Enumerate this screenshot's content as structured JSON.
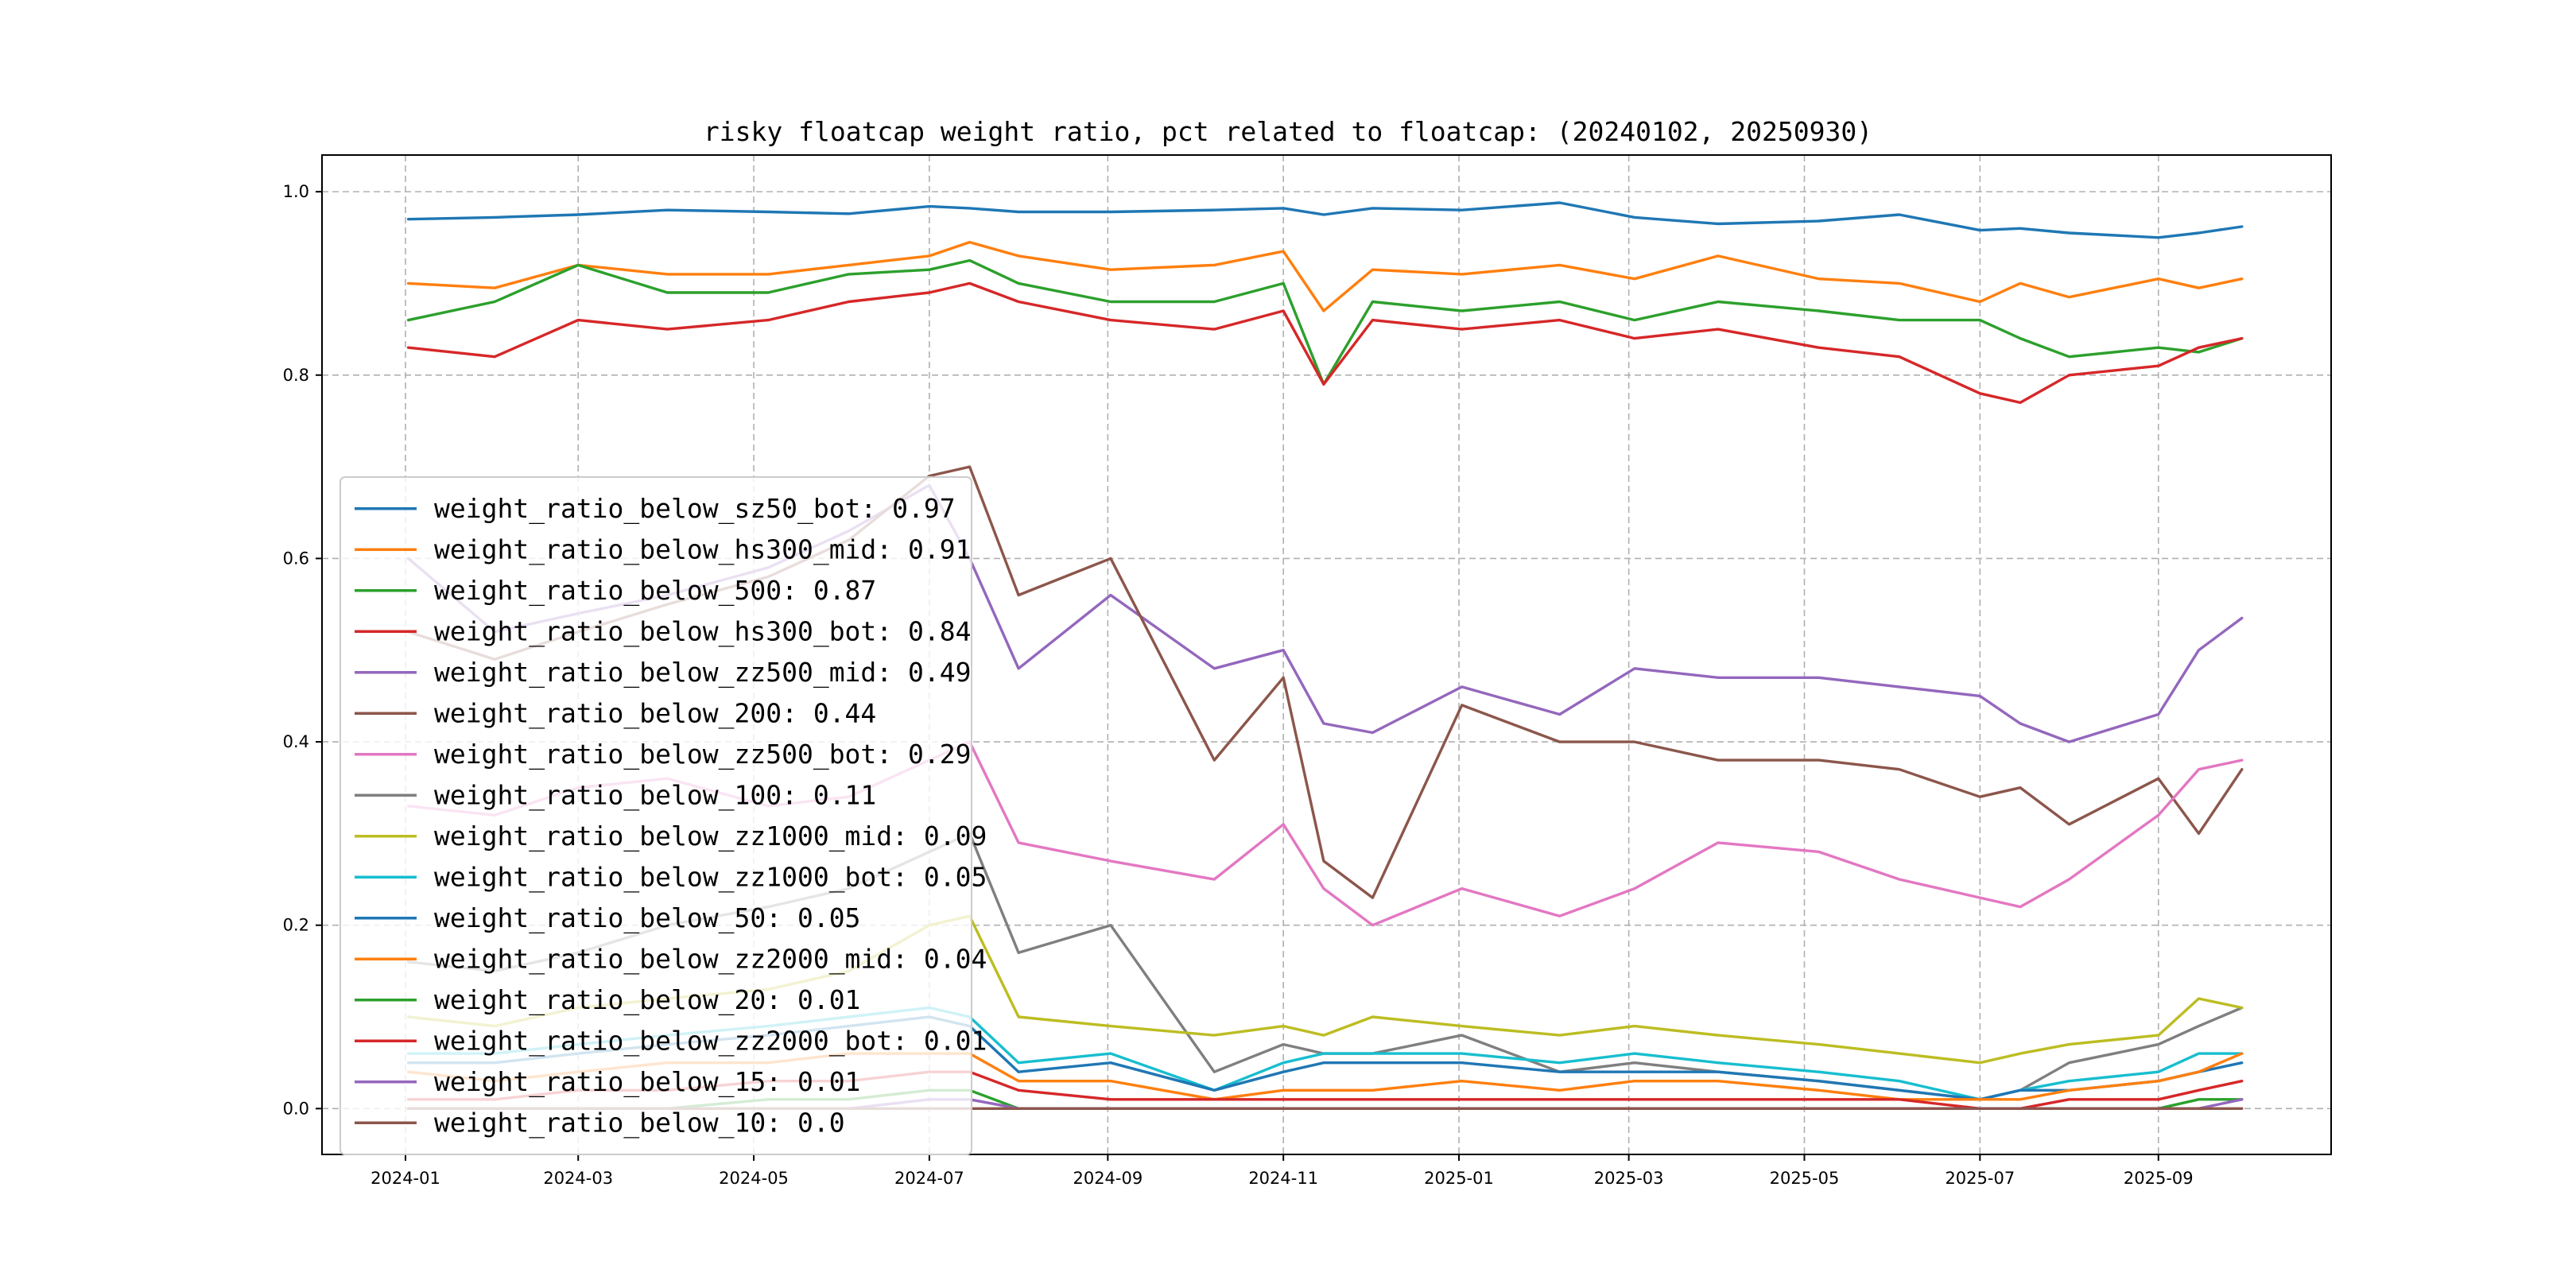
{
  "chart_data": {
    "type": "line",
    "title": "risky floatcap weight ratio, pct related to floatcap: (20240102, 20250930)",
    "xlabel": "",
    "ylabel": "",
    "xlim": [
      "2023-12-03",
      "2025-10-31"
    ],
    "ylim": [
      -0.05,
      1.04
    ],
    "grid": true,
    "legend_position": "center-left",
    "x_ticks": [
      "2024-01",
      "2024-03",
      "2024-05",
      "2024-07",
      "2024-09",
      "2024-11",
      "2025-01",
      "2025-03",
      "2025-05",
      "2025-07",
      "2025-09"
    ],
    "y_ticks": [
      "0.0",
      "0.2",
      "0.4",
      "0.6",
      "0.8",
      "1.0"
    ],
    "x": [
      "2024-01-02",
      "2024-02-01",
      "2024-03-01",
      "2024-04-01",
      "2024-05-06",
      "2024-06-03",
      "2024-07-01",
      "2024-07-15",
      "2024-08-01",
      "2024-09-02",
      "2024-10-08",
      "2024-11-01",
      "2024-11-15",
      "2024-12-02",
      "2025-01-02",
      "2025-02-05",
      "2025-03-03",
      "2025-04-01",
      "2025-05-06",
      "2025-06-03",
      "2025-07-01",
      "2025-07-15",
      "2025-08-01",
      "2025-09-01",
      "2025-09-15",
      "2025-09-30"
    ],
    "series": [
      {
        "name": "weight_ratio_below_sz50_bot",
        "label": "weight_ratio_below_sz50_bot: 0.97",
        "color": "#1f77b4",
        "values": [
          0.97,
          0.972,
          0.975,
          0.98,
          0.978,
          0.976,
          0.984,
          0.982,
          0.978,
          0.978,
          0.98,
          0.982,
          0.975,
          0.982,
          0.98,
          0.988,
          0.972,
          0.965,
          0.968,
          0.975,
          0.958,
          0.96,
          0.955,
          0.95,
          0.955,
          0.962
        ]
      },
      {
        "name": "weight_ratio_below_hs300_mid",
        "label": "weight_ratio_below_hs300_mid: 0.91",
        "color": "#ff7f0e",
        "values": [
          0.9,
          0.895,
          0.92,
          0.91,
          0.91,
          0.92,
          0.93,
          0.945,
          0.93,
          0.915,
          0.92,
          0.935,
          0.87,
          0.915,
          0.91,
          0.92,
          0.905,
          0.93,
          0.905,
          0.9,
          0.88,
          0.9,
          0.885,
          0.905,
          0.895,
          0.905
        ]
      },
      {
        "name": "weight_ratio_below_500",
        "label": "weight_ratio_below_500: 0.87",
        "color": "#2ca02c",
        "values": [
          0.86,
          0.88,
          0.92,
          0.89,
          0.89,
          0.91,
          0.915,
          0.925,
          0.9,
          0.88,
          0.88,
          0.9,
          0.79,
          0.88,
          0.87,
          0.88,
          0.86,
          0.88,
          0.87,
          0.86,
          0.86,
          0.84,
          0.82,
          0.83,
          0.825,
          0.84
        ]
      },
      {
        "name": "weight_ratio_below_hs300_bot",
        "label": "weight_ratio_below_hs300_bot: 0.84",
        "color": "#d62728",
        "values": [
          0.83,
          0.82,
          0.86,
          0.85,
          0.86,
          0.88,
          0.89,
          0.9,
          0.88,
          0.86,
          0.85,
          0.87,
          0.79,
          0.86,
          0.85,
          0.86,
          0.84,
          0.85,
          0.83,
          0.82,
          0.78,
          0.77,
          0.8,
          0.81,
          0.83,
          0.84
        ]
      },
      {
        "name": "weight_ratio_below_zz500_mid",
        "label": "weight_ratio_below_zz500_mid: 0.49",
        "color": "#9467bd",
        "values": [
          0.6,
          0.52,
          0.54,
          0.56,
          0.59,
          0.63,
          0.68,
          0.6,
          0.48,
          0.56,
          0.48,
          0.5,
          0.42,
          0.41,
          0.46,
          0.43,
          0.48,
          0.47,
          0.47,
          0.46,
          0.45,
          0.42,
          0.4,
          0.43,
          0.5,
          0.535
        ]
      },
      {
        "name": "weight_ratio_below_200",
        "label": "weight_ratio_below_200: 0.44",
        "color": "#8c564b",
        "values": [
          0.52,
          0.49,
          0.52,
          0.55,
          0.58,
          0.62,
          0.69,
          0.7,
          0.56,
          0.6,
          0.38,
          0.47,
          0.27,
          0.23,
          0.44,
          0.4,
          0.4,
          0.38,
          0.38,
          0.37,
          0.34,
          0.35,
          0.31,
          0.36,
          0.3,
          0.37
        ]
      },
      {
        "name": "weight_ratio_below_zz500_bot",
        "label": "weight_ratio_below_zz500_bot: 0.29",
        "color": "#e377c2",
        "values": [
          0.33,
          0.32,
          0.35,
          0.36,
          0.33,
          0.34,
          0.38,
          0.4,
          0.29,
          0.27,
          0.25,
          0.31,
          0.24,
          0.2,
          0.24,
          0.21,
          0.24,
          0.29,
          0.28,
          0.25,
          0.23,
          0.22,
          0.25,
          0.32,
          0.37,
          0.38
        ]
      },
      {
        "name": "weight_ratio_below_100",
        "label": "weight_ratio_below_100: 0.11",
        "color": "#7f7f7f",
        "values": [
          0.16,
          0.15,
          0.17,
          0.2,
          0.22,
          0.24,
          0.28,
          0.3,
          0.17,
          0.2,
          0.04,
          0.07,
          0.06,
          0.06,
          0.08,
          0.04,
          0.05,
          0.04,
          0.03,
          0.02,
          0.01,
          0.02,
          0.05,
          0.07,
          0.09,
          0.11
        ]
      },
      {
        "name": "weight_ratio_below_zz1000_mid",
        "label": "weight_ratio_below_zz1000_mid: 0.09",
        "color": "#bcbd22",
        "values": [
          0.1,
          0.09,
          0.11,
          0.12,
          0.13,
          0.15,
          0.2,
          0.21,
          0.1,
          0.09,
          0.08,
          0.09,
          0.08,
          0.1,
          0.09,
          0.08,
          0.09,
          0.08,
          0.07,
          0.06,
          0.05,
          0.06,
          0.07,
          0.08,
          0.12,
          0.11
        ]
      },
      {
        "name": "weight_ratio_below_zz1000_bot",
        "label": "weight_ratio_below_zz1000_bot: 0.05",
        "color": "#17becf",
        "values": [
          0.06,
          0.06,
          0.07,
          0.08,
          0.09,
          0.1,
          0.11,
          0.1,
          0.05,
          0.06,
          0.02,
          0.05,
          0.06,
          0.06,
          0.06,
          0.05,
          0.06,
          0.05,
          0.04,
          0.03,
          0.01,
          0.02,
          0.03,
          0.04,
          0.06,
          0.06
        ]
      },
      {
        "name": "weight_ratio_below_50",
        "label": "weight_ratio_below_50: 0.05",
        "color": "#1f77b4",
        "values": [
          0.05,
          0.05,
          0.06,
          0.07,
          0.08,
          0.09,
          0.1,
          0.09,
          0.04,
          0.05,
          0.02,
          0.04,
          0.05,
          0.05,
          0.05,
          0.04,
          0.04,
          0.04,
          0.03,
          0.02,
          0.01,
          0.02,
          0.02,
          0.03,
          0.04,
          0.05
        ]
      },
      {
        "name": "weight_ratio_below_zz2000_mid",
        "label": "weight_ratio_below_zz2000_mid: 0.04",
        "color": "#ff7f0e",
        "values": [
          0.04,
          0.03,
          0.04,
          0.05,
          0.05,
          0.06,
          0.06,
          0.06,
          0.03,
          0.03,
          0.01,
          0.02,
          0.02,
          0.02,
          0.03,
          0.02,
          0.03,
          0.03,
          0.02,
          0.01,
          0.01,
          0.01,
          0.02,
          0.03,
          0.04,
          0.06
        ]
      },
      {
        "name": "weight_ratio_below_20",
        "label": "weight_ratio_below_20: 0.01",
        "color": "#2ca02c",
        "values": [
          0.0,
          0.0,
          0.0,
          0.0,
          0.01,
          0.01,
          0.02,
          0.02,
          0.0,
          0.0,
          0.0,
          0.0,
          0.0,
          0.0,
          0.0,
          0.0,
          0.0,
          0.0,
          0.0,
          0.0,
          0.0,
          0.0,
          0.0,
          0.0,
          0.01,
          0.01
        ]
      },
      {
        "name": "weight_ratio_below_zz2000_bot",
        "label": "weight_ratio_below_zz2000_bot: 0.01",
        "color": "#d62728",
        "values": [
          0.01,
          0.01,
          0.02,
          0.02,
          0.03,
          0.03,
          0.04,
          0.04,
          0.02,
          0.01,
          0.01,
          0.01,
          0.01,
          0.01,
          0.01,
          0.01,
          0.01,
          0.01,
          0.01,
          0.01,
          0.0,
          0.0,
          0.01,
          0.01,
          0.02,
          0.03
        ]
      },
      {
        "name": "weight_ratio_below_15",
        "label": "weight_ratio_below_15: 0.01",
        "color": "#9467bd",
        "values": [
          0.0,
          0.0,
          0.0,
          0.0,
          0.0,
          0.0,
          0.01,
          0.01,
          0.0,
          0.0,
          0.0,
          0.0,
          0.0,
          0.0,
          0.0,
          0.0,
          0.0,
          0.0,
          0.0,
          0.0,
          0.0,
          0.0,
          0.0,
          0.0,
          0.0,
          0.01
        ]
      },
      {
        "name": "weight_ratio_below_10",
        "label": "weight_ratio_below_10: 0.0",
        "color": "#8c564b",
        "values": [
          0.0,
          0.0,
          0.0,
          0.0,
          0.0,
          0.0,
          0.0,
          0.0,
          0.0,
          0.0,
          0.0,
          0.0,
          0.0,
          0.0,
          0.0,
          0.0,
          0.0,
          0.0,
          0.0,
          0.0,
          0.0,
          0.0,
          0.0,
          0.0,
          0.0,
          0.0
        ]
      }
    ]
  }
}
